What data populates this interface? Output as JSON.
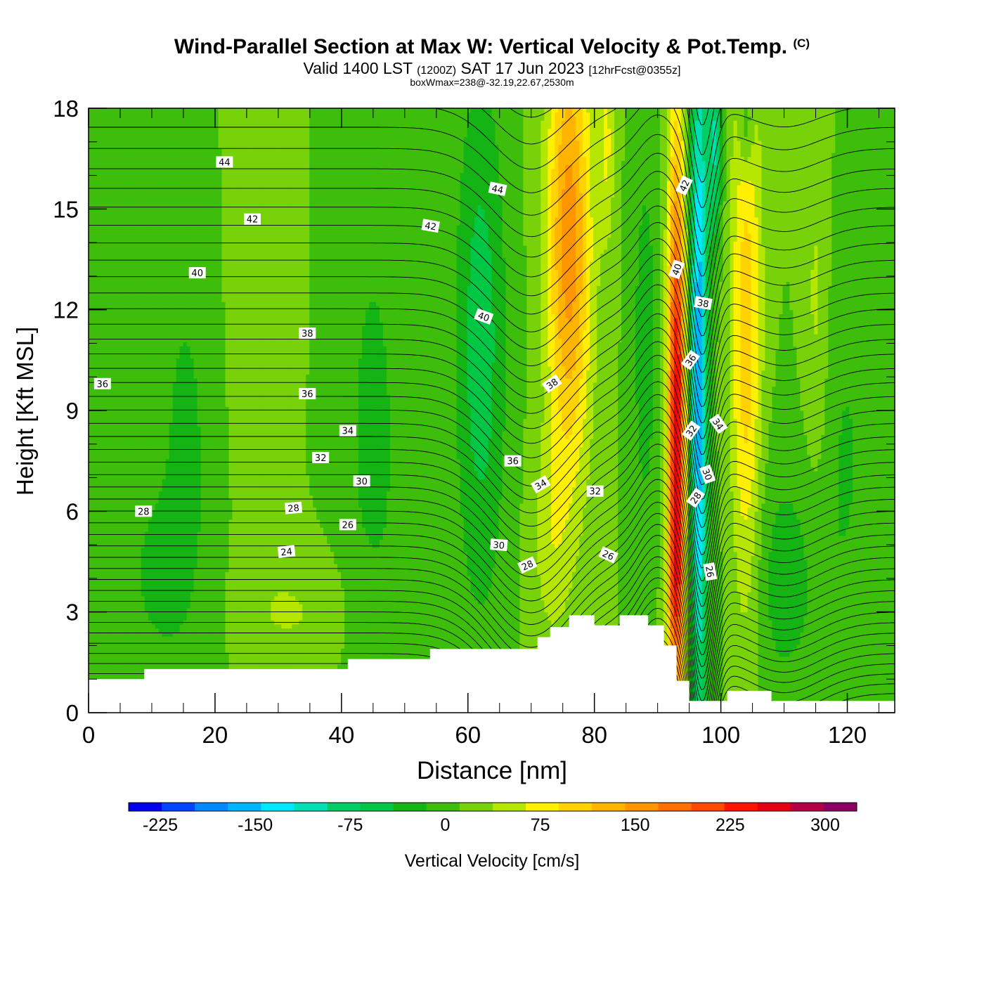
{
  "title": {
    "main": "Wind-Parallel Section at Max W: Vertical Velocity & Pot.Temp.",
    "copyright": "(C)",
    "valid_prefix": "Valid 1400 LST",
    "valid_utc": "(1200Z)",
    "valid_date": "SAT 17 Jun 2023",
    "forecast": "[12hrFcst@0355z]",
    "box_info": "boxWmax=238@-32.19,22.67,2530m"
  },
  "colors": {
    "w_m225": "#0000ee",
    "w_m200": "#0044ff",
    "w_m175": "#0088ff",
    "w_m150": "#00b4ff",
    "w_m125": "#00e8ff",
    "w_m100": "#00e0b4",
    "w_m75": "#00cd64",
    "w_m50": "#00c844",
    "w_m25": "#14b414",
    "w_0": "#3cbe0a",
    "w_25": "#78d20a",
    "w_50": "#b4e600",
    "w_75": "#fff000",
    "w_100": "#ffd200",
    "w_125": "#ffb400",
    "w_150": "#ff9600",
    "w_175": "#ff7000",
    "w_200": "#ff4800",
    "w_225": "#ff1400",
    "w_250": "#e60014",
    "w_275": "#b40046",
    "w_300": "#8c0064",
    "terrain": "#ffffff",
    "contour": "#000000"
  },
  "chart_data": {
    "type": "heatmap",
    "xlabel": "Distance [nm]",
    "ylabel": "Height [Kft MSL]",
    "xlim": [
      0,
      127.5
    ],
    "ylim": [
      0,
      18
    ],
    "xticks": [
      0,
      20,
      40,
      60,
      80,
      100,
      120
    ],
    "yticks": [
      0,
      3,
      6,
      9,
      12,
      15,
      18
    ],
    "colorbar": {
      "label": "Vertical Velocity [cm/s]",
      "min": -250,
      "max": 325,
      "step": 25,
      "ticks": [
        -225,
        -150,
        -75,
        0,
        75,
        150,
        225,
        300
      ]
    },
    "max_w": 238,
    "terrain_kft": [
      [
        0,
        1.0
      ],
      [
        8.8,
        1.0
      ],
      [
        8.8,
        1.3
      ],
      [
        41,
        1.3
      ],
      [
        41,
        1.6
      ],
      [
        54,
        1.6
      ],
      [
        54,
        1.9
      ],
      [
        71,
        1.9
      ],
      [
        71,
        2.25
      ],
      [
        73,
        2.25
      ],
      [
        73,
        2.55
      ],
      [
        76,
        2.55
      ],
      [
        76,
        2.9
      ],
      [
        80,
        2.9
      ],
      [
        80,
        2.6
      ],
      [
        84,
        2.6
      ],
      [
        84,
        2.9
      ],
      [
        88.5,
        2.9
      ],
      [
        88.5,
        2.6
      ],
      [
        91,
        2.6
      ],
      [
        91,
        2.0
      ],
      [
        93,
        2.0
      ],
      [
        93,
        0.95
      ],
      [
        95,
        0.95
      ],
      [
        95,
        0.35
      ],
      [
        101,
        0.35
      ],
      [
        101,
        0.65
      ],
      [
        108,
        0.65
      ],
      [
        108,
        0.35
      ],
      [
        127.5,
        0.35
      ]
    ],
    "w_features": [
      {
        "x": 96.5,
        "y": 10,
        "sx": 1.4,
        "sy": 11,
        "value": -170
      },
      {
        "x": 99,
        "y": 17,
        "sx": 1.2,
        "sy": 3,
        "value": -100
      },
      {
        "x": 93,
        "y": 8,
        "sx": 1.4,
        "sy": 9,
        "value": 240
      },
      {
        "x": 92.5,
        "y": 4,
        "sx": 1.2,
        "sy": 2,
        "value": 40
      },
      {
        "x": 76,
        "y": 14,
        "sx": 3.5,
        "sy": 7,
        "value": 140
      },
      {
        "x": 82,
        "y": 17,
        "sx": 1.2,
        "sy": 3,
        "value": 50
      },
      {
        "x": 73,
        "y": 5,
        "sx": 3,
        "sy": 3,
        "value": 35
      },
      {
        "x": 104,
        "y": 11,
        "sx": 2.5,
        "sy": 9,
        "value": 90
      },
      {
        "x": 104,
        "y": 17.5,
        "sx": 1.2,
        "sy": 1.5,
        "value": -60
      },
      {
        "x": 62,
        "y": 11,
        "sx": 4,
        "sy": 8,
        "value": -65
      },
      {
        "x": 45,
        "y": 8,
        "sx": 6,
        "sy": 10,
        "value": -30
      },
      {
        "x": 16,
        "y": 8,
        "sx": 7,
        "sy": 9,
        "value": -30
      },
      {
        "x": 25,
        "y": 11,
        "sx": 6,
        "sy": 8,
        "value": 20
      },
      {
        "x": 33,
        "y": 3,
        "sx": 10,
        "sy": 2,
        "value": 25
      },
      {
        "x": 88,
        "y": 11,
        "sx": 2,
        "sy": 6,
        "value": -40
      },
      {
        "x": 110,
        "y": 4,
        "sx": 7,
        "sy": 4,
        "value": -35
      },
      {
        "x": 115,
        "y": 12,
        "sx": 2,
        "sy": 6,
        "value": 30
      },
      {
        "x": 10,
        "y": 4,
        "sx": 5,
        "sy": 2.5,
        "value": -20
      },
      {
        "x": 120,
        "y": 8,
        "sx": 4,
        "sy": 6,
        "value": -25
      }
    ],
    "theta_contours": {
      "min": 22,
      "max": 49,
      "step": 0.5
    },
    "contour_labels": [
      {
        "x": 21.5,
        "y": 16.4,
        "text": "44",
        "angle": 0
      },
      {
        "x": 25.9,
        "y": 14.7,
        "text": "42",
        "angle": 0
      },
      {
        "x": 17.2,
        "y": 13.1,
        "text": "40",
        "angle": 0
      },
      {
        "x": 34.6,
        "y": 11.3,
        "text": "38",
        "angle": 0
      },
      {
        "x": 2.2,
        "y": 9.8,
        "text": "36",
        "angle": 0
      },
      {
        "x": 34.6,
        "y": 9.5,
        "text": "36",
        "angle": 0
      },
      {
        "x": 41,
        "y": 8.4,
        "text": "34",
        "angle": 0
      },
      {
        "x": 36.7,
        "y": 7.6,
        "text": "32",
        "angle": 0
      },
      {
        "x": 43.2,
        "y": 6.9,
        "text": "30",
        "angle": 0
      },
      {
        "x": 8.7,
        "y": 6.0,
        "text": "28",
        "angle": 0
      },
      {
        "x": 32.4,
        "y": 6.1,
        "text": "28",
        "angle": -5
      },
      {
        "x": 41,
        "y": 5.6,
        "text": "26",
        "angle": 0
      },
      {
        "x": 31.3,
        "y": 4.8,
        "text": "24",
        "angle": -6
      },
      {
        "x": 64.7,
        "y": 15.6,
        "text": "44",
        "angle": 12
      },
      {
        "x": 54.1,
        "y": 14.5,
        "text": "42",
        "angle": 10
      },
      {
        "x": 62.5,
        "y": 11.8,
        "text": "40",
        "angle": 20
      },
      {
        "x": 73.3,
        "y": 9.8,
        "text": "38",
        "angle": -35
      },
      {
        "x": 67.1,
        "y": 7.5,
        "text": "36",
        "angle": 0
      },
      {
        "x": 71.5,
        "y": 6.8,
        "text": "34",
        "angle": -30
      },
      {
        "x": 80.1,
        "y": 6.6,
        "text": "32",
        "angle": 0
      },
      {
        "x": 64.9,
        "y": 5.0,
        "text": "30",
        "angle": 5
      },
      {
        "x": 69.4,
        "y": 4.4,
        "text": "28",
        "angle": -25
      },
      {
        "x": 82.2,
        "y": 4.7,
        "text": "26",
        "angle": 25
      },
      {
        "x": 94.2,
        "y": 15.7,
        "text": "42",
        "angle": -65
      },
      {
        "x": 93.0,
        "y": 13.2,
        "text": "40",
        "angle": -70
      },
      {
        "x": 97.2,
        "y": 12.2,
        "text": "38",
        "angle": 10
      },
      {
        "x": 95.2,
        "y": 10.5,
        "text": "36",
        "angle": -55
      },
      {
        "x": 99.6,
        "y": 8.6,
        "text": "34",
        "angle": 55
      },
      {
        "x": 95.3,
        "y": 8.4,
        "text": "32",
        "angle": -55
      },
      {
        "x": 97.9,
        "y": 7.1,
        "text": "30",
        "angle": 70
      },
      {
        "x": 96.0,
        "y": 6.4,
        "text": "28",
        "angle": -55
      },
      {
        "x": 98.3,
        "y": 4.2,
        "text": "26",
        "angle": 80
      }
    ]
  }
}
